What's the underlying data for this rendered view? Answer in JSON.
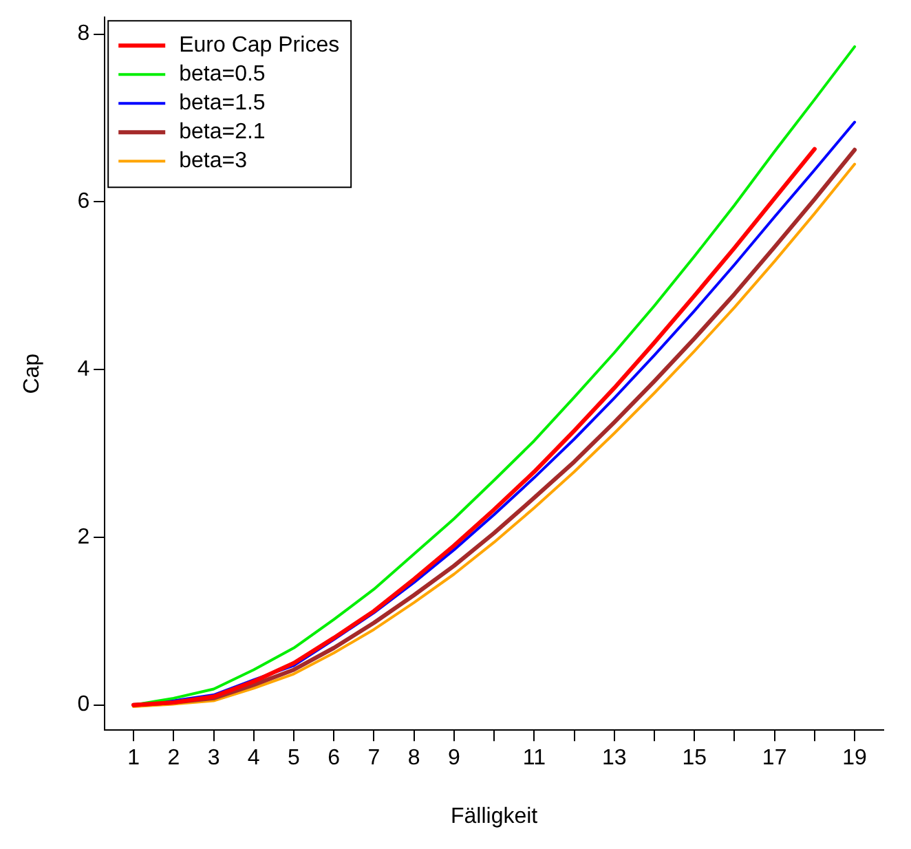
{
  "chart_data": {
    "type": "line",
    "xlabel": "Fälligkeit",
    "ylabel": "Cap",
    "x": [
      1,
      2,
      3,
      4,
      5,
      6,
      7,
      8,
      9,
      10,
      11,
      12,
      13,
      14,
      15,
      16,
      17,
      18,
      19
    ],
    "xlim": [
      0.28,
      19.72
    ],
    "ylim": [
      -0.3,
      8.2
    ],
    "xticks": [
      1,
      2,
      3,
      4,
      5,
      6,
      7,
      8,
      9,
      {
        "value": 10,
        "label": null
      },
      11,
      {
        "value": 12,
        "label": null
      },
      13,
      {
        "value": 14,
        "label": null
      },
      15,
      {
        "value": 16,
        "label": null
      },
      17,
      {
        "value": 18,
        "label": null
      },
      19
    ],
    "yticks": [
      0,
      2,
      4,
      6,
      8
    ],
    "grid": false,
    "legend": "top left",
    "marker": "none",
    "line_style": "solid",
    "series": [
      {
        "name": "Euro Cap Prices",
        "color": "#ff0000",
        "values": [
          0,
          0.03,
          0.1,
          0.28,
          0.5,
          0.8,
          1.12,
          1.5,
          1.9,
          2.33,
          2.78,
          3.27,
          3.78,
          4.32,
          4.88,
          5.45,
          6.04,
          6.63,
          null
        ]
      },
      {
        "name": "beta=0.5",
        "color": "#00ee00",
        "values": [
          0,
          0.08,
          0.19,
          0.42,
          0.68,
          1.02,
          1.38,
          1.8,
          2.22,
          2.68,
          3.15,
          3.67,
          4.2,
          4.76,
          5.35,
          5.96,
          6.6,
          7.22,
          7.85
        ]
      },
      {
        "name": "beta=1.5",
        "color": "#0000ff",
        "values": [
          0,
          0.05,
          0.12,
          0.3,
          0.47,
          0.78,
          1.1,
          1.46,
          1.85,
          2.27,
          2.71,
          3.17,
          3.66,
          4.17,
          4.7,
          5.25,
          5.82,
          6.38,
          6.95
        ]
      },
      {
        "name": "beta=2.1",
        "color": "#a52a2a",
        "values": [
          0,
          0.03,
          0.08,
          0.24,
          0.42,
          0.68,
          0.98,
          1.31,
          1.66,
          2.05,
          2.47,
          2.9,
          3.37,
          3.86,
          4.37,
          4.9,
          5.46,
          6.03,
          6.62
        ]
      },
      {
        "name": "beta=3",
        "color": "#ffa500",
        "values": [
          -0.02,
          0.01,
          0.05,
          0.2,
          0.37,
          0.62,
          0.9,
          1.22,
          1.56,
          1.94,
          2.35,
          2.78,
          3.24,
          3.72,
          4.22,
          4.74,
          5.29,
          5.86,
          6.45
        ]
      }
    ]
  }
}
